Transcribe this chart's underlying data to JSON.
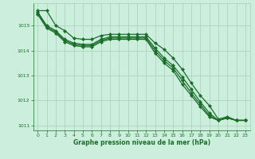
{
  "background_color": "#cceedd",
  "grid_color": "#aaccbb",
  "line_color": "#1a6e2a",
  "marker_color": "#1a6e2a",
  "xlabel": "Graphe pression niveau de la mer (hPa)",
  "xlabel_color": "#1a6e2a",
  "tick_color": "#1a6e2a",
  "ylim": [
    1010.8,
    1015.9
  ],
  "xlim": [
    -0.5,
    23.5
  ],
  "yticks": [
    1011,
    1012,
    1013,
    1014,
    1015
  ],
  "xticks": [
    0,
    1,
    2,
    3,
    4,
    5,
    6,
    7,
    8,
    9,
    10,
    11,
    12,
    13,
    14,
    15,
    16,
    17,
    18,
    19,
    20,
    21,
    22,
    23
  ],
  "series": [
    {
      "x": [
        0,
        1,
        2,
        3,
        4,
        5,
        6,
        7,
        8,
        9,
        10,
        11,
        12,
        13,
        14,
        15,
        16,
        17,
        18,
        19,
        20,
        21,
        22,
        23
      ],
      "y": [
        1015.6,
        1015.6,
        1015.0,
        1014.8,
        1014.5,
        1014.45,
        1014.45,
        1014.6,
        1014.65,
        1014.65,
        1014.65,
        1014.65,
        1014.65,
        1014.3,
        1014.05,
        1013.7,
        1013.25,
        1012.7,
        1012.2,
        1011.8,
        1011.25,
        1011.35,
        1011.2,
        1011.2
      ],
      "marker": "D",
      "markersize": 2.0,
      "linewidth": 0.9
    },
    {
      "x": [
        0,
        1,
        2,
        3,
        4,
        5,
        6,
        7,
        8,
        9,
        10,
        11,
        12,
        13,
        14,
        15,
        16,
        17,
        18,
        19,
        20,
        21,
        22,
        23
      ],
      "y": [
        1015.55,
        1015.0,
        1014.8,
        1014.45,
        1014.3,
        1014.25,
        1014.25,
        1014.45,
        1014.55,
        1014.55,
        1014.55,
        1014.55,
        1014.55,
        1014.1,
        1013.7,
        1013.4,
        1012.95,
        1012.45,
        1011.95,
        1011.5,
        1011.2,
        1011.3,
        1011.2,
        1011.2
      ],
      "marker": "D",
      "markersize": 2.0,
      "linewidth": 0.9
    },
    {
      "x": [
        0,
        1,
        2,
        3,
        4,
        5,
        6,
        7,
        8,
        9,
        10,
        11,
        12,
        13,
        14,
        15,
        16,
        17,
        18,
        19,
        20,
        21,
        22,
        23
      ],
      "y": [
        1015.5,
        1014.95,
        1014.75,
        1014.4,
        1014.25,
        1014.2,
        1014.2,
        1014.4,
        1014.5,
        1014.5,
        1014.5,
        1014.5,
        1014.5,
        1014.0,
        1013.6,
        1013.3,
        1012.8,
        1012.3,
        1011.85,
        1011.4,
        1011.2,
        1011.3,
        1011.2,
        1011.2
      ],
      "marker": "D",
      "markersize": 2.0,
      "linewidth": 0.9
    },
    {
      "x": [
        0,
        1,
        2,
        3,
        4,
        5,
        6,
        7,
        8,
        9,
        10,
        11,
        12,
        13,
        14,
        15,
        16,
        17,
        18,
        19,
        20,
        21,
        22,
        23
      ],
      "y": [
        1015.45,
        1014.9,
        1014.7,
        1014.35,
        1014.2,
        1014.15,
        1014.15,
        1014.35,
        1014.45,
        1014.45,
        1014.45,
        1014.45,
        1014.45,
        1013.9,
        1013.5,
        1013.2,
        1012.65,
        1012.2,
        1011.75,
        1011.35,
        1011.2,
        1011.3,
        1011.2,
        1011.2
      ],
      "marker": "D",
      "markersize": 2.0,
      "linewidth": 0.9
    }
  ]
}
